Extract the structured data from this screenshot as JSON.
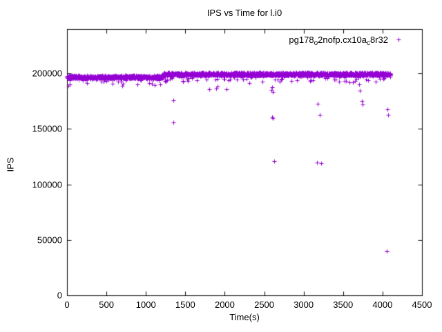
{
  "chart_data": {
    "type": "scatter",
    "title": "IPS vs Time for l.i0",
    "xlabel": "Time(s)",
    "ylabel": "IPS",
    "xlim": [
      0,
      4500
    ],
    "ylim": [
      0,
      240000
    ],
    "xticks": [
      0,
      500,
      1000,
      1500,
      2000,
      2500,
      3000,
      3500,
      4000,
      4500
    ],
    "yticks": [
      0,
      50000,
      100000,
      150000,
      200000
    ],
    "grid": false,
    "marker": "+",
    "color": "#9400d3",
    "seed": 1234,
    "legend": {
      "position": "top-right-inside",
      "label": "pg178_o2nofp.cx10a_c8r32",
      "parts": [
        {
          "text": "pg178"
        },
        {
          "text": "o",
          "sub": true
        },
        {
          "text": "2nofp.cx10a"
        },
        {
          "text": "c",
          "sub": true
        },
        {
          "text": "8r32"
        }
      ]
    },
    "series": [
      {
        "name": "pg178_o2nofp.cx10a_c8r32",
        "band_segments": [
          {
            "x_start": 0,
            "x_end": 1220,
            "y_mean": 196700,
            "y_jitter": 1600,
            "points": 850
          },
          {
            "x_start": 1220,
            "x_end": 4100,
            "y_mean": 199300,
            "y_jitter": 1700,
            "points": 2100
          }
        ],
        "dip_probability": 0.05,
        "dip_max": 6500,
        "outliers": [
          [
            15,
            189000
          ],
          [
            700,
            189000
          ],
          [
            712,
            191000
          ],
          [
            1240,
            193500
          ],
          [
            1255,
            192500
          ],
          [
            1350,
            175500
          ],
          [
            1352,
            156000
          ],
          [
            1650,
            194000
          ],
          [
            1800,
            186000
          ],
          [
            1895,
            186500
          ],
          [
            1905,
            188500
          ],
          [
            2020,
            186000
          ],
          [
            2310,
            191500
          ],
          [
            2480,
            192500
          ],
          [
            2590,
            185000
          ],
          [
            2598,
            187500
          ],
          [
            2600,
            161000
          ],
          [
            2606,
            183500
          ],
          [
            2612,
            159500
          ],
          [
            2625,
            121000
          ],
          [
            3080,
            193000
          ],
          [
            3170,
            120000
          ],
          [
            3180,
            172500
          ],
          [
            3205,
            163000
          ],
          [
            3225,
            119000
          ],
          [
            3450,
            192500
          ],
          [
            3700,
            190000
          ],
          [
            3715,
            184500
          ],
          [
            3740,
            175000
          ],
          [
            3750,
            172000
          ],
          [
            4060,
            168000
          ],
          [
            4070,
            162500
          ],
          [
            4055,
            40000
          ]
        ]
      }
    ]
  }
}
